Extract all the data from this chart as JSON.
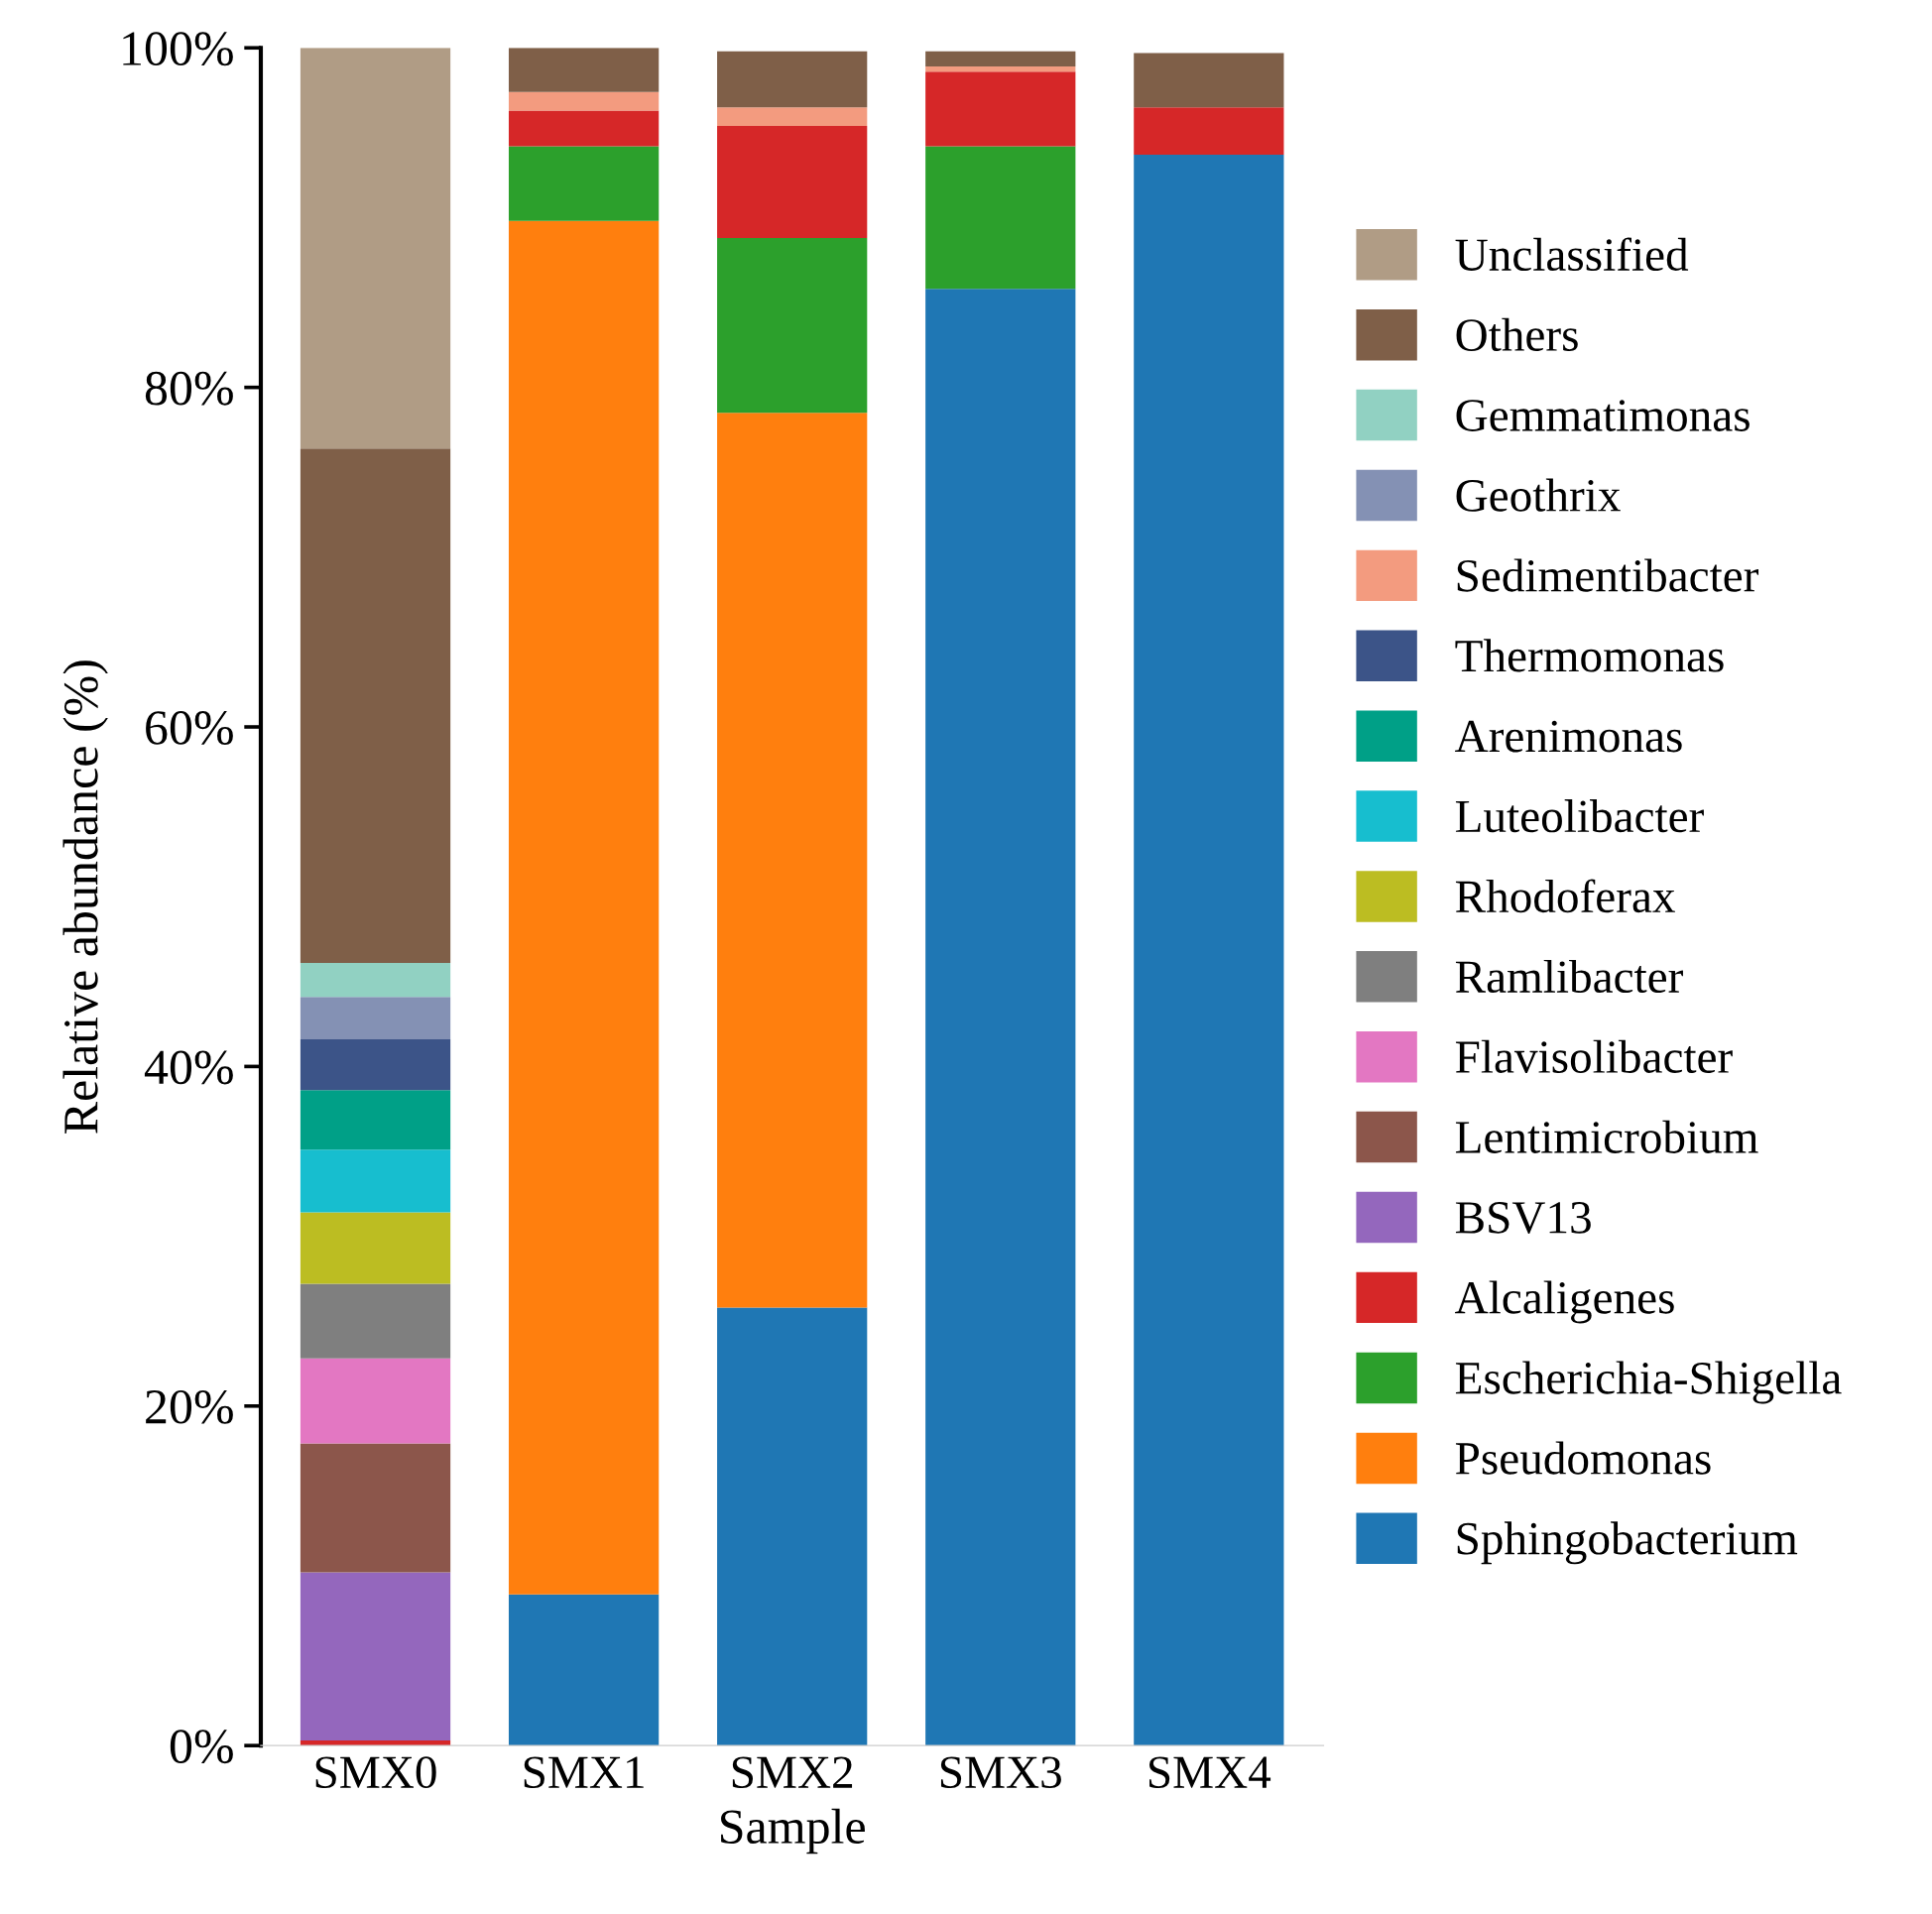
{
  "chart_data": {
    "type": "bar",
    "stacked": true,
    "xlabel": "Sample",
    "ylabel": "Relative abundance (%)",
    "categories": [
      "SMX0",
      "SMX1",
      "SMX2",
      "SMX3",
      "SMX4"
    ],
    "ylim": [
      0,
      100
    ],
    "yticks": [
      {
        "value": 0,
        "label": "0%"
      },
      {
        "value": 20,
        "label": "20%"
      },
      {
        "value": 40,
        "label": "40%"
      },
      {
        "value": 60,
        "label": "60%"
      },
      {
        "value": 80,
        "label": "80%"
      },
      {
        "value": 100,
        "label": "100%"
      }
    ],
    "grid": false,
    "legend": "right",
    "series": [
      {
        "name": "Sphingobacterium",
        "color": "#1f77b4",
        "values": [
          null,
          8.9,
          25.8,
          85.8,
          93.7
        ]
      },
      {
        "name": "Pseudomonas",
        "color": "#ff7f0e",
        "values": [
          null,
          80.9,
          52.7,
          null,
          null
        ]
      },
      {
        "name": "Escherichia-Shigella",
        "color": "#2ca02c",
        "values": [
          null,
          4.4,
          10.3,
          8.4,
          null
        ]
      },
      {
        "name": "Alcaligenes",
        "color": "#d62728",
        "values": [
          0.3,
          2.1,
          6.6,
          4.4,
          2.8
        ]
      },
      {
        "name": "BSV13",
        "color": "#9467bd",
        "values": [
          9.9,
          null,
          null,
          null,
          null
        ]
      },
      {
        "name": "Lentimicrobium",
        "color": "#8c564b",
        "values": [
          7.6,
          null,
          null,
          null,
          null
        ]
      },
      {
        "name": "Flavisolibacter",
        "color": "#e377c2",
        "values": [
          5.0,
          null,
          null,
          null,
          null
        ]
      },
      {
        "name": "Ramlibacter",
        "color": "#7f7f7f",
        "values": [
          4.4,
          null,
          null,
          null,
          null
        ]
      },
      {
        "name": "Rhodoferax",
        "color": "#bcbd22",
        "values": [
          4.2,
          null,
          null,
          null,
          null
        ]
      },
      {
        "name": "Luteolibacter",
        "color": "#17becf",
        "values": [
          3.7,
          null,
          null,
          null,
          null
        ]
      },
      {
        "name": "Arenimonas",
        "color": "#00a087",
        "values": [
          3.5,
          null,
          null,
          null,
          null
        ]
      },
      {
        "name": "Thermomonas",
        "color": "#3c5488",
        "values": [
          3.0,
          null,
          null,
          null,
          null
        ]
      },
      {
        "name": "Sedimentibacter",
        "color": "#f39b7f",
        "values": [
          null,
          1.1,
          1.1,
          0.3,
          null
        ]
      },
      {
        "name": "Geothrix",
        "color": "#8491b4",
        "values": [
          2.5,
          null,
          null,
          null,
          null
        ]
      },
      {
        "name": "Gemmatimonas",
        "color": "#91d1c2",
        "values": [
          2.0,
          null,
          null,
          null,
          null
        ]
      },
      {
        "name": "Others",
        "color": "#7f5f48",
        "values": [
          30.3,
          2.6,
          3.3,
          0.9,
          3.2
        ]
      },
      {
        "name": "Unclassified",
        "color": "#b09c85",
        "values": [
          23.6,
          null,
          null,
          null,
          null
        ]
      }
    ]
  }
}
